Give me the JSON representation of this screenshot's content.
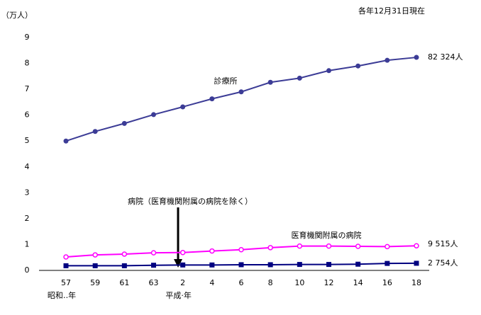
{
  "chart_data": {
    "type": "line",
    "subtitle": "各年12月31日現在",
    "y_label": "（万人）",
    "categories": [
      "57",
      "59",
      "61",
      "63",
      "2",
      "4",
      "6",
      "8",
      "10",
      "12",
      "14",
      "16",
      "18"
    ],
    "era_labels": [
      {
        "index": 0,
        "label": "昭和‥年"
      },
      {
        "index": 4,
        "label": "平成‧年"
      }
    ],
    "ylim": [
      0,
      9
    ],
    "yticks": [
      0,
      1,
      2,
      3,
      4,
      5,
      6,
      7,
      8,
      9
    ],
    "series": [
      {
        "name": "診療所",
        "color": "#3c3c96",
        "marker": "filled-circle",
        "end_label": "82 324人",
        "values": [
          5.0,
          5.37,
          5.68,
          6.02,
          6.32,
          6.63,
          6.9,
          7.27,
          7.43,
          7.72,
          7.9,
          8.12,
          8.2324
        ]
      },
      {
        "name": "医育機関附属の病院",
        "color": "#ff00ff",
        "marker": "hollow-circle",
        "end_label": "9 515人",
        "values": [
          0.52,
          0.6,
          0.63,
          0.68,
          0.69,
          0.75,
          0.8,
          0.88,
          0.94,
          0.94,
          0.93,
          0.92,
          0.9515
        ]
      },
      {
        "name": "病院（医育機関附属の病院を除く）",
        "color": "#000080",
        "marker": "square",
        "end_label": "2 754人",
        "values": [
          0.18,
          0.18,
          0.18,
          0.2,
          0.21,
          0.21,
          0.22,
          0.22,
          0.23,
          0.23,
          0.24,
          0.27,
          0.2754
        ]
      }
    ]
  }
}
